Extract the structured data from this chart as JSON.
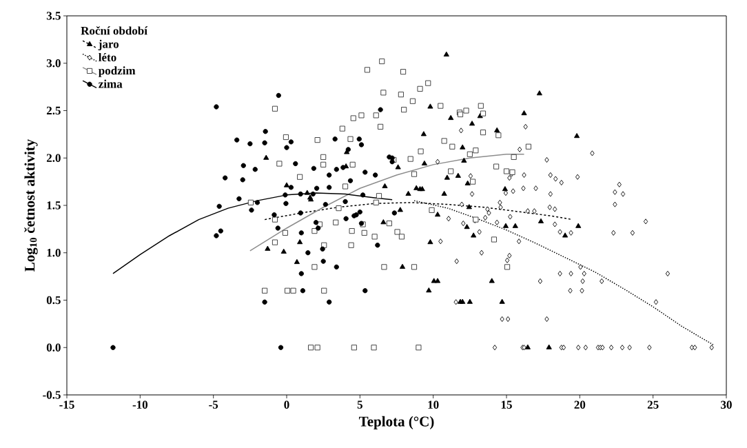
{
  "chart_data": {
    "type": "scatter",
    "xlabel": "Teplota (°C)",
    "ylabel": "Log$_{10}$ četnost aktivity",
    "legend_title": "Roční období",
    "legend": "top left",
    "xlim": [
      -15,
      30
    ],
    "xticks": [
      -15,
      -10,
      -5,
      0,
      5,
      10,
      15,
      20,
      25,
      30
    ],
    "ylim": [
      -0.5,
      3.5
    ],
    "yticks": [
      {
        "value": -0.5,
        "label": "-0.5"
      },
      {
        "value": 0,
        "label": "0.0"
      },
      {
        "value": 0.5,
        "label": "0.5"
      },
      {
        "value": 1,
        "label": "1.0"
      },
      {
        "value": 1.5,
        "label": "1.5"
      },
      {
        "value": 2,
        "label": "2.0"
      },
      {
        "value": 2.5,
        "label": "2.5"
      },
      {
        "value": 3,
        "label": "3.0"
      },
      {
        "value": 3.5,
        "label": "3.5"
      }
    ],
    "series": [
      {
        "name": "jaro",
        "marker": "triangle",
        "color": "#000000",
        "x": [
          -1.4,
          -1.3,
          -0.2,
          0,
          0.7,
          0.9,
          1.4,
          1.6,
          1.65,
          4.05,
          4.1,
          6.6,
          6.7,
          7.6,
          7.75,
          7.9,
          8.3,
          8.85,
          9.1,
          9.25,
          9.35,
          9.4,
          9.7,
          9.8,
          9.8,
          10.05,
          10.3,
          10.3,
          10.9,
          10.75,
          10.95,
          11.2,
          11.7,
          11.85,
          12.0,
          12.0,
          12.1,
          12.3,
          12.35,
          12.45,
          12.5,
          12.65,
          12.75,
          13.2,
          14.0,
          14.35,
          14.7,
          14.9,
          14.95,
          15.6,
          16.2,
          16.45,
          17.25,
          17.35,
          17.9,
          19.0,
          19.8,
          19.9
        ],
        "values": [
          2.0,
          1.04,
          1.01,
          1.71,
          0.9,
          1.11,
          1.63,
          1.58,
          1.56,
          1.91,
          2.06,
          1.32,
          1.7,
          1.9,
          1.45,
          0.85,
          1.62,
          1.68,
          1.67,
          1.67,
          2.25,
          1.94,
          0.6,
          1.11,
          2.54,
          0.7,
          0.7,
          1.4,
          3.09,
          1.62,
          1.79,
          2.42,
          1.81,
          0.48,
          0.48,
          2.11,
          1.97,
          1.27,
          1.73,
          1.48,
          0.48,
          2.36,
          1.18,
          2.44,
          0.7,
          2.29,
          0.48,
          1.67,
          1.28,
          1.28,
          2.47,
          0,
          2.68,
          1.33,
          0,
          1.18,
          2.23,
          1.28
        ]
      },
      {
        "name": "léto",
        "marker": "diamond",
        "color": "#000000",
        "x": [
          10.5,
          10.3,
          11.05,
          11.6,
          11.55,
          11.9,
          11.95,
          12.05,
          12.55,
          12.65,
          12.85,
          13.15,
          13.3,
          13.55,
          13.7,
          13.8,
          14.2,
          14.35,
          14.55,
          14.6,
          14.7,
          15.1,
          14.95,
          15.05,
          15.2,
          15.2,
          15.25,
          15.35,
          15.45,
          15.85,
          15.9,
          16.1,
          16.2,
          16.15,
          16.2,
          16.3,
          16.45,
          16.9,
          17.0,
          17.3,
          17.75,
          17.75,
          17.95,
          18.0,
          18.0,
          18.3,
          18.35,
          18.3,
          18.65,
          18.75,
          18.75,
          18.9,
          18.65,
          19.35,
          19.4,
          19.4,
          19.85,
          19.9,
          20.05,
          20.15,
          20.2,
          20.3,
          20.4,
          20.85,
          21.25,
          21.4,
          21.5,
          21.55,
          22.15,
          22.3,
          22.4,
          22.4,
          22.7,
          22.95,
          22.9,
          23.4,
          23.6,
          24.5,
          24.75,
          25.2,
          26.0,
          27.65,
          27.85,
          29.0
        ],
        "values": [
          1.12,
          1.96,
          1.36,
          0.91,
          0.48,
          2.29,
          1.51,
          1.31,
          1.81,
          1.62,
          1.34,
          1.22,
          1.0,
          1.37,
          1.46,
          1.42,
          0,
          1.32,
          1.53,
          1.48,
          0.3,
          0.3,
          1.63,
          0.92,
          0.97,
          1.79,
          1.38,
          1.83,
          1.65,
          1.12,
          2.09,
          0,
          0,
          1.68,
          1.82,
          2.33,
          1.44,
          1.44,
          1.68,
          0.7,
          1.98,
          0.3,
          1.48,
          1.62,
          1.82,
          1.46,
          1.78,
          1.3,
          0.78,
          1.74,
          0,
          0,
          1.22,
          0.6,
          0.78,
          1.21,
          1.8,
          0,
          0.85,
          0.6,
          0.7,
          0.78,
          0,
          2.05,
          0,
          0,
          0.7,
          0,
          0,
          1.21,
          1.64,
          1.51,
          1.72,
          1.62,
          0,
          0,
          1.21,
          1.33,
          0,
          0.48,
          0.78,
          0,
          0,
          0
        ]
      },
      {
        "name": "podzim",
        "marker": "square",
        "color": "#333333",
        "x": [
          -0.8,
          -1.5,
          -0.8,
          -0.8,
          -2.45,
          -0.5,
          -0.05,
          -0.1,
          0.05,
          0.45,
          0.9,
          1.65,
          2.1,
          1.9,
          1.9,
          2.1,
          2.25,
          2.5,
          2.5,
          2.55,
          2.55,
          3.35,
          3.55,
          3.8,
          4.0,
          4.35,
          4.45,
          4.4,
          4.5,
          4.55,
          4.6,
          5.1,
          5.2,
          5.3,
          5.5,
          5.95,
          6.0,
          6.1,
          6.1,
          6.3,
          6.4,
          6.5,
          6.6,
          6.65,
          7.0,
          7.3,
          7.55,
          7.85,
          7.8,
          7.95,
          8.0,
          8.45,
          8.6,
          8.7,
          8.7,
          9.0,
          9.1,
          9.15,
          9.65,
          9.9,
          10.5,
          10.75,
          11.2,
          11.3,
          11.8,
          11.85,
          12.25,
          12.5,
          12.7,
          12.9,
          12.9,
          13.25,
          13.4,
          13.4,
          14.15,
          14.3,
          14.45,
          15.0,
          15.05,
          15.4,
          15.5,
          16.5
        ],
        "values": [
          2.52,
          0.6,
          1.11,
          1.35,
          1.53,
          1.94,
          2.22,
          1.21,
          0.6,
          0.6,
          1.8,
          0,
          0,
          0.85,
          1.23,
          2.19,
          1.3,
          2.01,
          1.93,
          1.08,
          0.6,
          1.32,
          1.47,
          2.31,
          1.7,
          2.2,
          1.23,
          1.08,
          1.93,
          2.42,
          0,
          2.45,
          1.3,
          1.21,
          2.93,
          0,
          1.17,
          2.45,
          1.53,
          1.6,
          2.33,
          3.02,
          2.69,
          0.85,
          1.31,
          1.98,
          1.22,
          1.17,
          2.67,
          2.91,
          2.51,
          1.99,
          2.6,
          0.85,
          1.83,
          0,
          2.73,
          2.07,
          2.79,
          1.45,
          2.55,
          2.18,
          1.86,
          2.12,
          2.48,
          2.46,
          2.5,
          2.04,
          1.75,
          2.08,
          1.35,
          2.55,
          2.47,
          2.27,
          1.14,
          1.91,
          2.24,
          1.86,
          0.85,
          1.85,
          2.01,
          2.12
        ]
      },
      {
        "name": "zima",
        "marker": "circle",
        "color": "#000000",
        "x": [
          -11.85,
          -0.4,
          -4.8,
          -4.6,
          -4.8,
          -4.5,
          -4.2,
          -3.4,
          -3.25,
          -3.0,
          -2.95,
          -2.5,
          -2.4,
          -2.15,
          -2.0,
          -1.45,
          -1.5,
          -1.5,
          -0.85,
          -0.6,
          -0.55,
          -0.05,
          -0.1,
          0,
          0.3,
          0.3,
          0.6,
          0.95,
          0.95,
          1.0,
          1.0,
          1.1,
          1.45,
          1.8,
          1.85,
          2.0,
          2.05,
          2.15,
          2.45,
          2.5,
          2.65,
          2.9,
          2.9,
          2.9,
          3.3,
          3.4,
          3.4,
          3.85,
          4.0,
          4.05,
          4.2,
          4.35,
          4.6,
          4.75,
          4.95,
          5.1,
          5.0,
          5.1,
          5.2,
          5.35,
          5.35,
          6.05,
          6.2,
          6.4,
          7.0,
          7.2,
          7.35,
          7.2
        ],
        "values": [
          0,
          0,
          2.54,
          1.49,
          1.18,
          1.23,
          1.79,
          2.19,
          1.57,
          1.77,
          1.92,
          2.15,
          1.45,
          1.88,
          1.53,
          2.28,
          2.16,
          0.48,
          1.4,
          1.26,
          2.66,
          1.52,
          1.61,
          2.11,
          2.17,
          1.69,
          1.94,
          1.62,
          1.42,
          1.21,
          0.78,
          0.6,
          1.0,
          1.62,
          1.89,
          1.32,
          1.68,
          1.26,
          1.04,
          0.91,
          1.51,
          0.48,
          1.82,
          1.69,
          2.2,
          1.88,
          0.85,
          1.9,
          1.54,
          1.36,
          2.09,
          1.76,
          1.39,
          1.4,
          2.2,
          2.14,
          1.43,
          1.31,
          1.61,
          1.85,
          0.6,
          1.82,
          1.08,
          2.51,
          2.01,
          2.0,
          1.42,
          1.96
        ]
      },
      {
        "type": "line",
        "color": "#000000",
        "line_style": "dashed",
        "x": [
          -1.5,
          1,
          3.5,
          6,
          8.5,
          11,
          13.5,
          16,
          18,
          19.5
        ],
        "values": [
          1.35,
          1.42,
          1.48,
          1.52,
          1.53,
          1.51,
          1.48,
          1.43,
          1.39,
          1.35
        ]
      },
      {
        "type": "line",
        "color": "#000000",
        "line_style": "dotted",
        "x": [
          8.7,
          11,
          13,
          15,
          17,
          19,
          21,
          23,
          25,
          27,
          29.1
        ],
        "values": [
          1.55,
          1.47,
          1.36,
          1.24,
          1.1,
          0.95,
          0.8,
          0.62,
          0.43,
          0.22,
          0.03
        ]
      },
      {
        "type": "line",
        "color": "#8c8c8c",
        "line_style": "solid",
        "x": [
          -2.5,
          0,
          2.5,
          5,
          7.5,
          10,
          12.5,
          15,
          16.2
        ],
        "values": [
          1.02,
          1.26,
          1.48,
          1.68,
          1.82,
          1.93,
          2.0,
          2.04,
          2.04
        ]
      },
      {
        "type": "line",
        "color": "#000000",
        "line_style": "solid",
        "x": [
          -11.85,
          -10,
          -8,
          -6,
          -4,
          -2,
          0,
          2,
          4,
          6,
          7.2
        ],
        "values": [
          0.78,
          0.98,
          1.18,
          1.35,
          1.47,
          1.55,
          1.61,
          1.63,
          1.62,
          1.58,
          1.56
        ]
      }
    ]
  }
}
